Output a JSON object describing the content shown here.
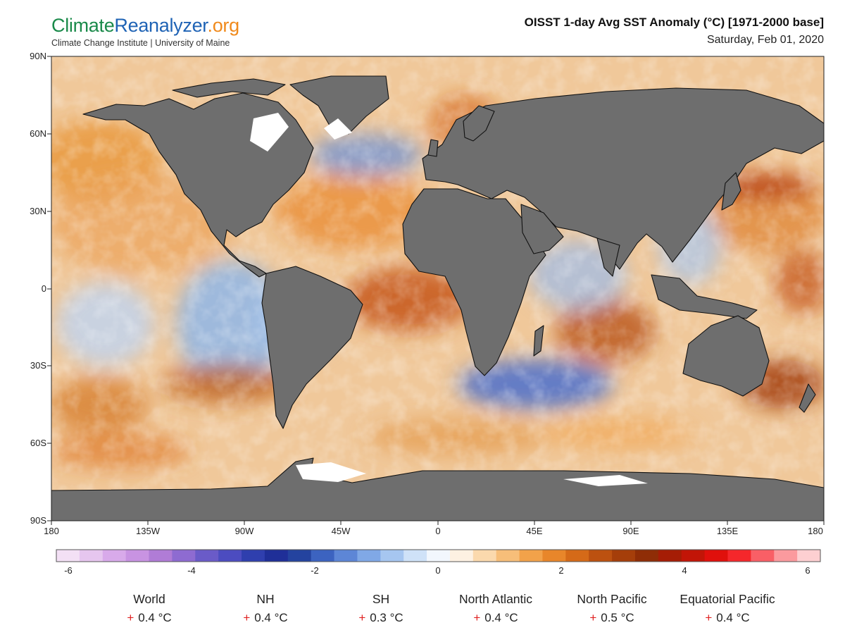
{
  "brand": {
    "part1": "Climate",
    "part2": "Reanalyzer",
    "part3": ".org",
    "subtitle": "Climate Change Institute | University of Maine"
  },
  "map": {
    "title": "OISST 1-day Avg SST Anomaly (°C) [1971-2000 base]",
    "date": "Saturday, Feb 01, 2020",
    "lat_labels": [
      "90N",
      "60N",
      "30N",
      "0",
      "30S",
      "60S",
      "90S"
    ],
    "lon_labels": [
      "180",
      "135W",
      "90W",
      "45W",
      "0",
      "45E",
      "90E",
      "135E",
      "180"
    ],
    "colors": {
      "land": "#6e6e6e",
      "ocean_warm": "#e9963a",
      "ocean_cool": "#8fb6e8",
      "sea_ice": "#ffffff"
    }
  },
  "colorbar": {
    "min": -6,
    "max": 6,
    "labels": [
      "-6",
      "-4",
      "-2",
      "0",
      "2",
      "4",
      "6"
    ],
    "colors": [
      "#f3e0f5",
      "#e6c6ef",
      "#d8aaea",
      "#c893e2",
      "#b07cd6",
      "#8e6bd1",
      "#6a5bc8",
      "#4c4cc0",
      "#2f3fae",
      "#1f2f98",
      "#24439f",
      "#3c63c0",
      "#5d86d6",
      "#80a8e6",
      "#a6c6f0",
      "#cfe2f8",
      "#f2f7fd",
      "#fdf1e2",
      "#fbd9ad",
      "#f7be79",
      "#f2a24a",
      "#e8862a",
      "#d56a18",
      "#bc5110",
      "#a53e0a",
      "#8f2d06",
      "#a51d05",
      "#c21507",
      "#e0100c",
      "#f5272b",
      "#f95f66",
      "#fb9a9e",
      "#fdcfd1"
    ]
  },
  "stats": [
    {
      "name": "World",
      "value": "0.4 °C"
    },
    {
      "name": "NH",
      "value": "0.4 °C"
    },
    {
      "name": "SH",
      "value": "0.3 °C"
    },
    {
      "name": "North Atlantic",
      "value": "0.4 °C"
    },
    {
      "name": "North Pacific",
      "value": "0.5 °C"
    },
    {
      "name": "Equatorial Pacific",
      "value": "0.4 °C"
    }
  ]
}
